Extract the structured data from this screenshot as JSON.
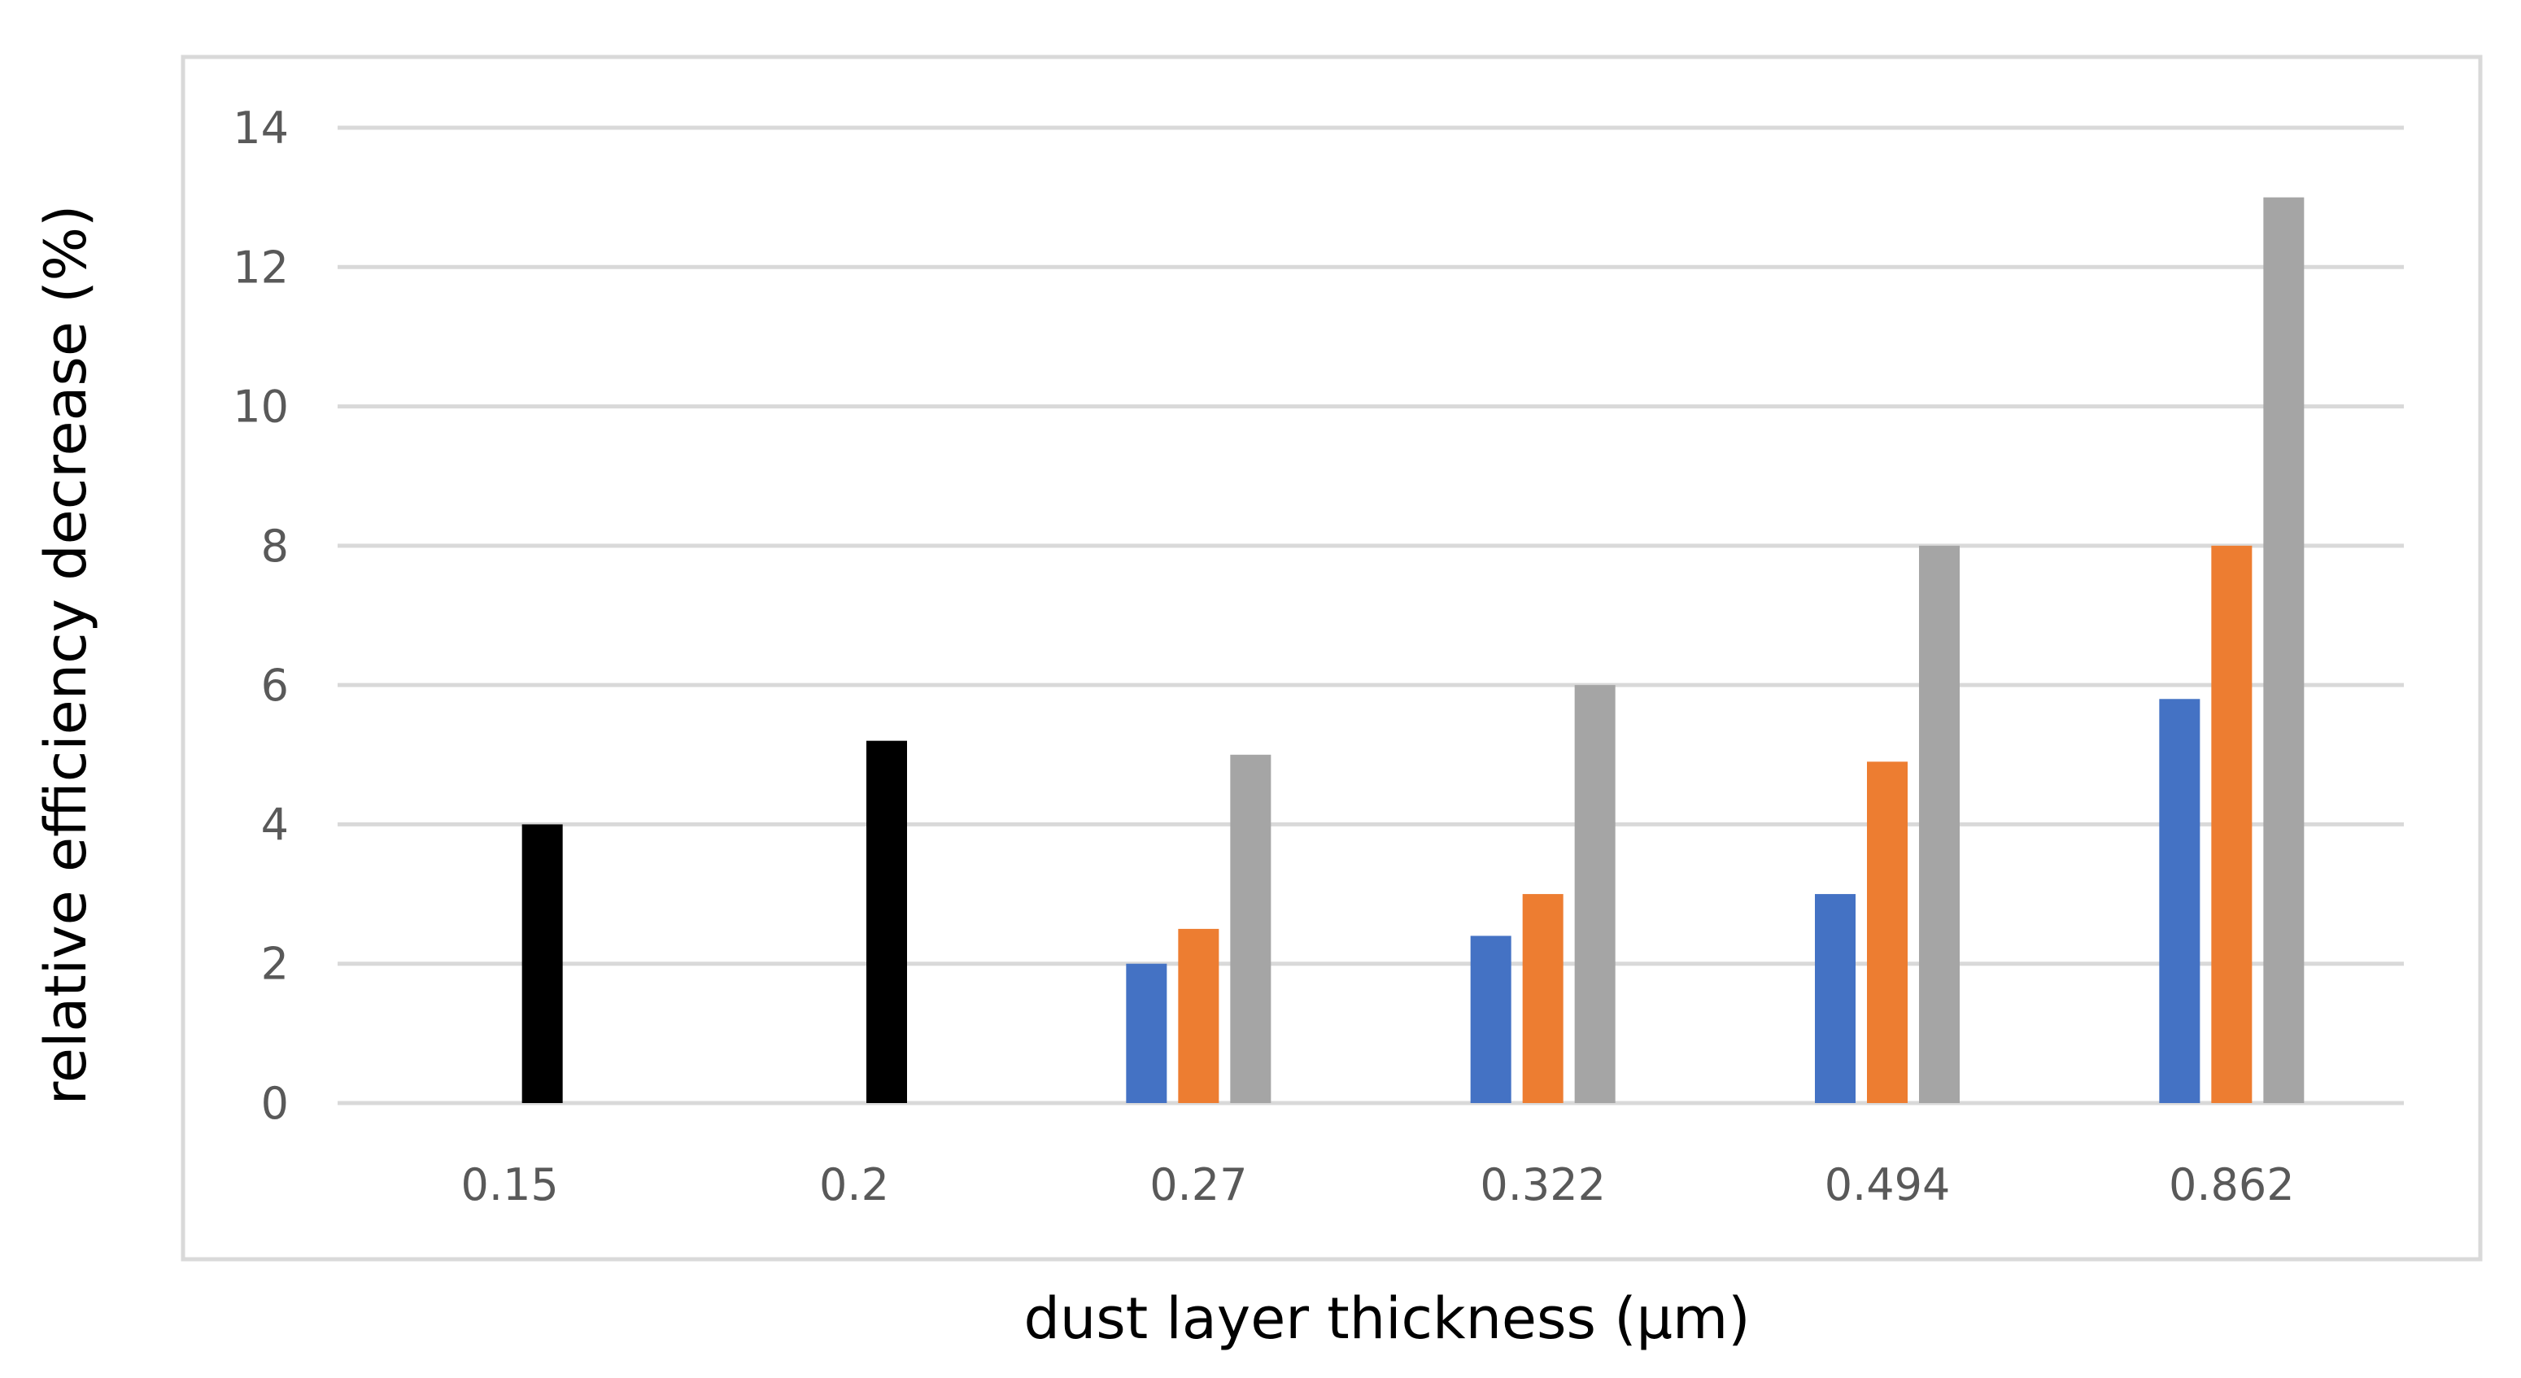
{
  "chart_data": {
    "type": "bar",
    "title": "",
    "xlabel": "dust layer thickness (μm)",
    "ylabel": "relative efficiency decrease (%)",
    "ylim": [
      0,
      14
    ],
    "yticks": [
      "0",
      "2",
      "4",
      "6",
      "8",
      "10",
      "12",
      "14"
    ],
    "grid": true,
    "legend": "none",
    "categories": [
      "0.15",
      "0.2",
      "0.27",
      "0.322",
      "0.494",
      "0.862"
    ],
    "series": [
      {
        "color": "#000000",
        "values": [
          4,
          5.2,
          null,
          null,
          null,
          null
        ]
      },
      {
        "color": "#4472C4",
        "values": [
          null,
          null,
          2,
          2.4,
          3,
          5.8
        ]
      },
      {
        "color": "#ED7D31",
        "values": [
          null,
          null,
          2.5,
          3,
          4.9,
          8
        ]
      },
      {
        "color": "#A5A5A5",
        "values": [
          null,
          null,
          5,
          6,
          8,
          13
        ]
      }
    ]
  }
}
